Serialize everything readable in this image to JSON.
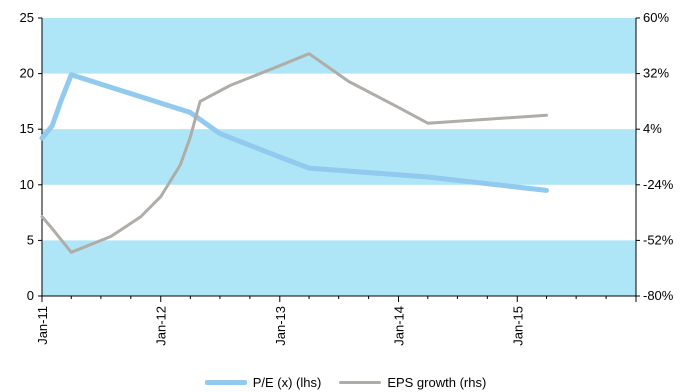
{
  "chart_data": {
    "type": "line",
    "title": "",
    "xlabel": "",
    "ylabel": "",
    "x_tick_labels": [
      "Jan-11",
      "Jan-12",
      "Jan-13",
      "Jan-14",
      "Jan-15"
    ],
    "x_range": [
      "2011-01-01",
      "2016-01-01"
    ],
    "y_left": {
      "range": [
        0,
        25
      ],
      "ticks": [
        "0",
        "5",
        "10",
        "15",
        "20",
        "25"
      ]
    },
    "y_right": {
      "range": [
        -80,
        60
      ],
      "ticks": [
        "-80%",
        "-52%",
        "-24%",
        "4%",
        "32%",
        "60%"
      ]
    },
    "bands": {
      "color": "#aee6f7",
      "y_ranges": [
        [
          0,
          5
        ],
        [
          10,
          15
        ],
        [
          20,
          25
        ]
      ]
    },
    "series": [
      {
        "name": "P/E (x) (lhs)",
        "axis": "left",
        "color": "#92c9ee",
        "points": [
          [
            "2011-01-01",
            14.2
          ],
          [
            "2011-02-01",
            15.3
          ],
          [
            "2011-03-01",
            17.6
          ],
          [
            "2011-04-01",
            19.9
          ],
          [
            "2012-04-01",
            16.5
          ],
          [
            "2012-07-01",
            14.6
          ],
          [
            "2013-01-01",
            12.5
          ],
          [
            "2013-04-01",
            11.5
          ],
          [
            "2014-04-01",
            10.7
          ],
          [
            "2015-04-01",
            9.5
          ]
        ]
      },
      {
        "name": "EPS growth (rhs)",
        "axis": "right",
        "color": "#b0aca7",
        "points": [
          [
            "2011-01-01",
            -40
          ],
          [
            "2011-02-01",
            -46
          ],
          [
            "2011-04-01",
            -58
          ],
          [
            "2011-08-01",
            -50
          ],
          [
            "2011-11-01",
            -40
          ],
          [
            "2012-01-01",
            -30
          ],
          [
            "2012-03-01",
            -14
          ],
          [
            "2012-04-01",
            0
          ],
          [
            "2012-05-01",
            18
          ],
          [
            "2012-08-01",
            26
          ],
          [
            "2013-01-01",
            36
          ],
          [
            "2013-04-01",
            42
          ],
          [
            "2013-08-01",
            28
          ],
          [
            "2014-01-01",
            15
          ],
          [
            "2014-04-01",
            7
          ],
          [
            "2015-04-01",
            11
          ]
        ]
      }
    ]
  }
}
